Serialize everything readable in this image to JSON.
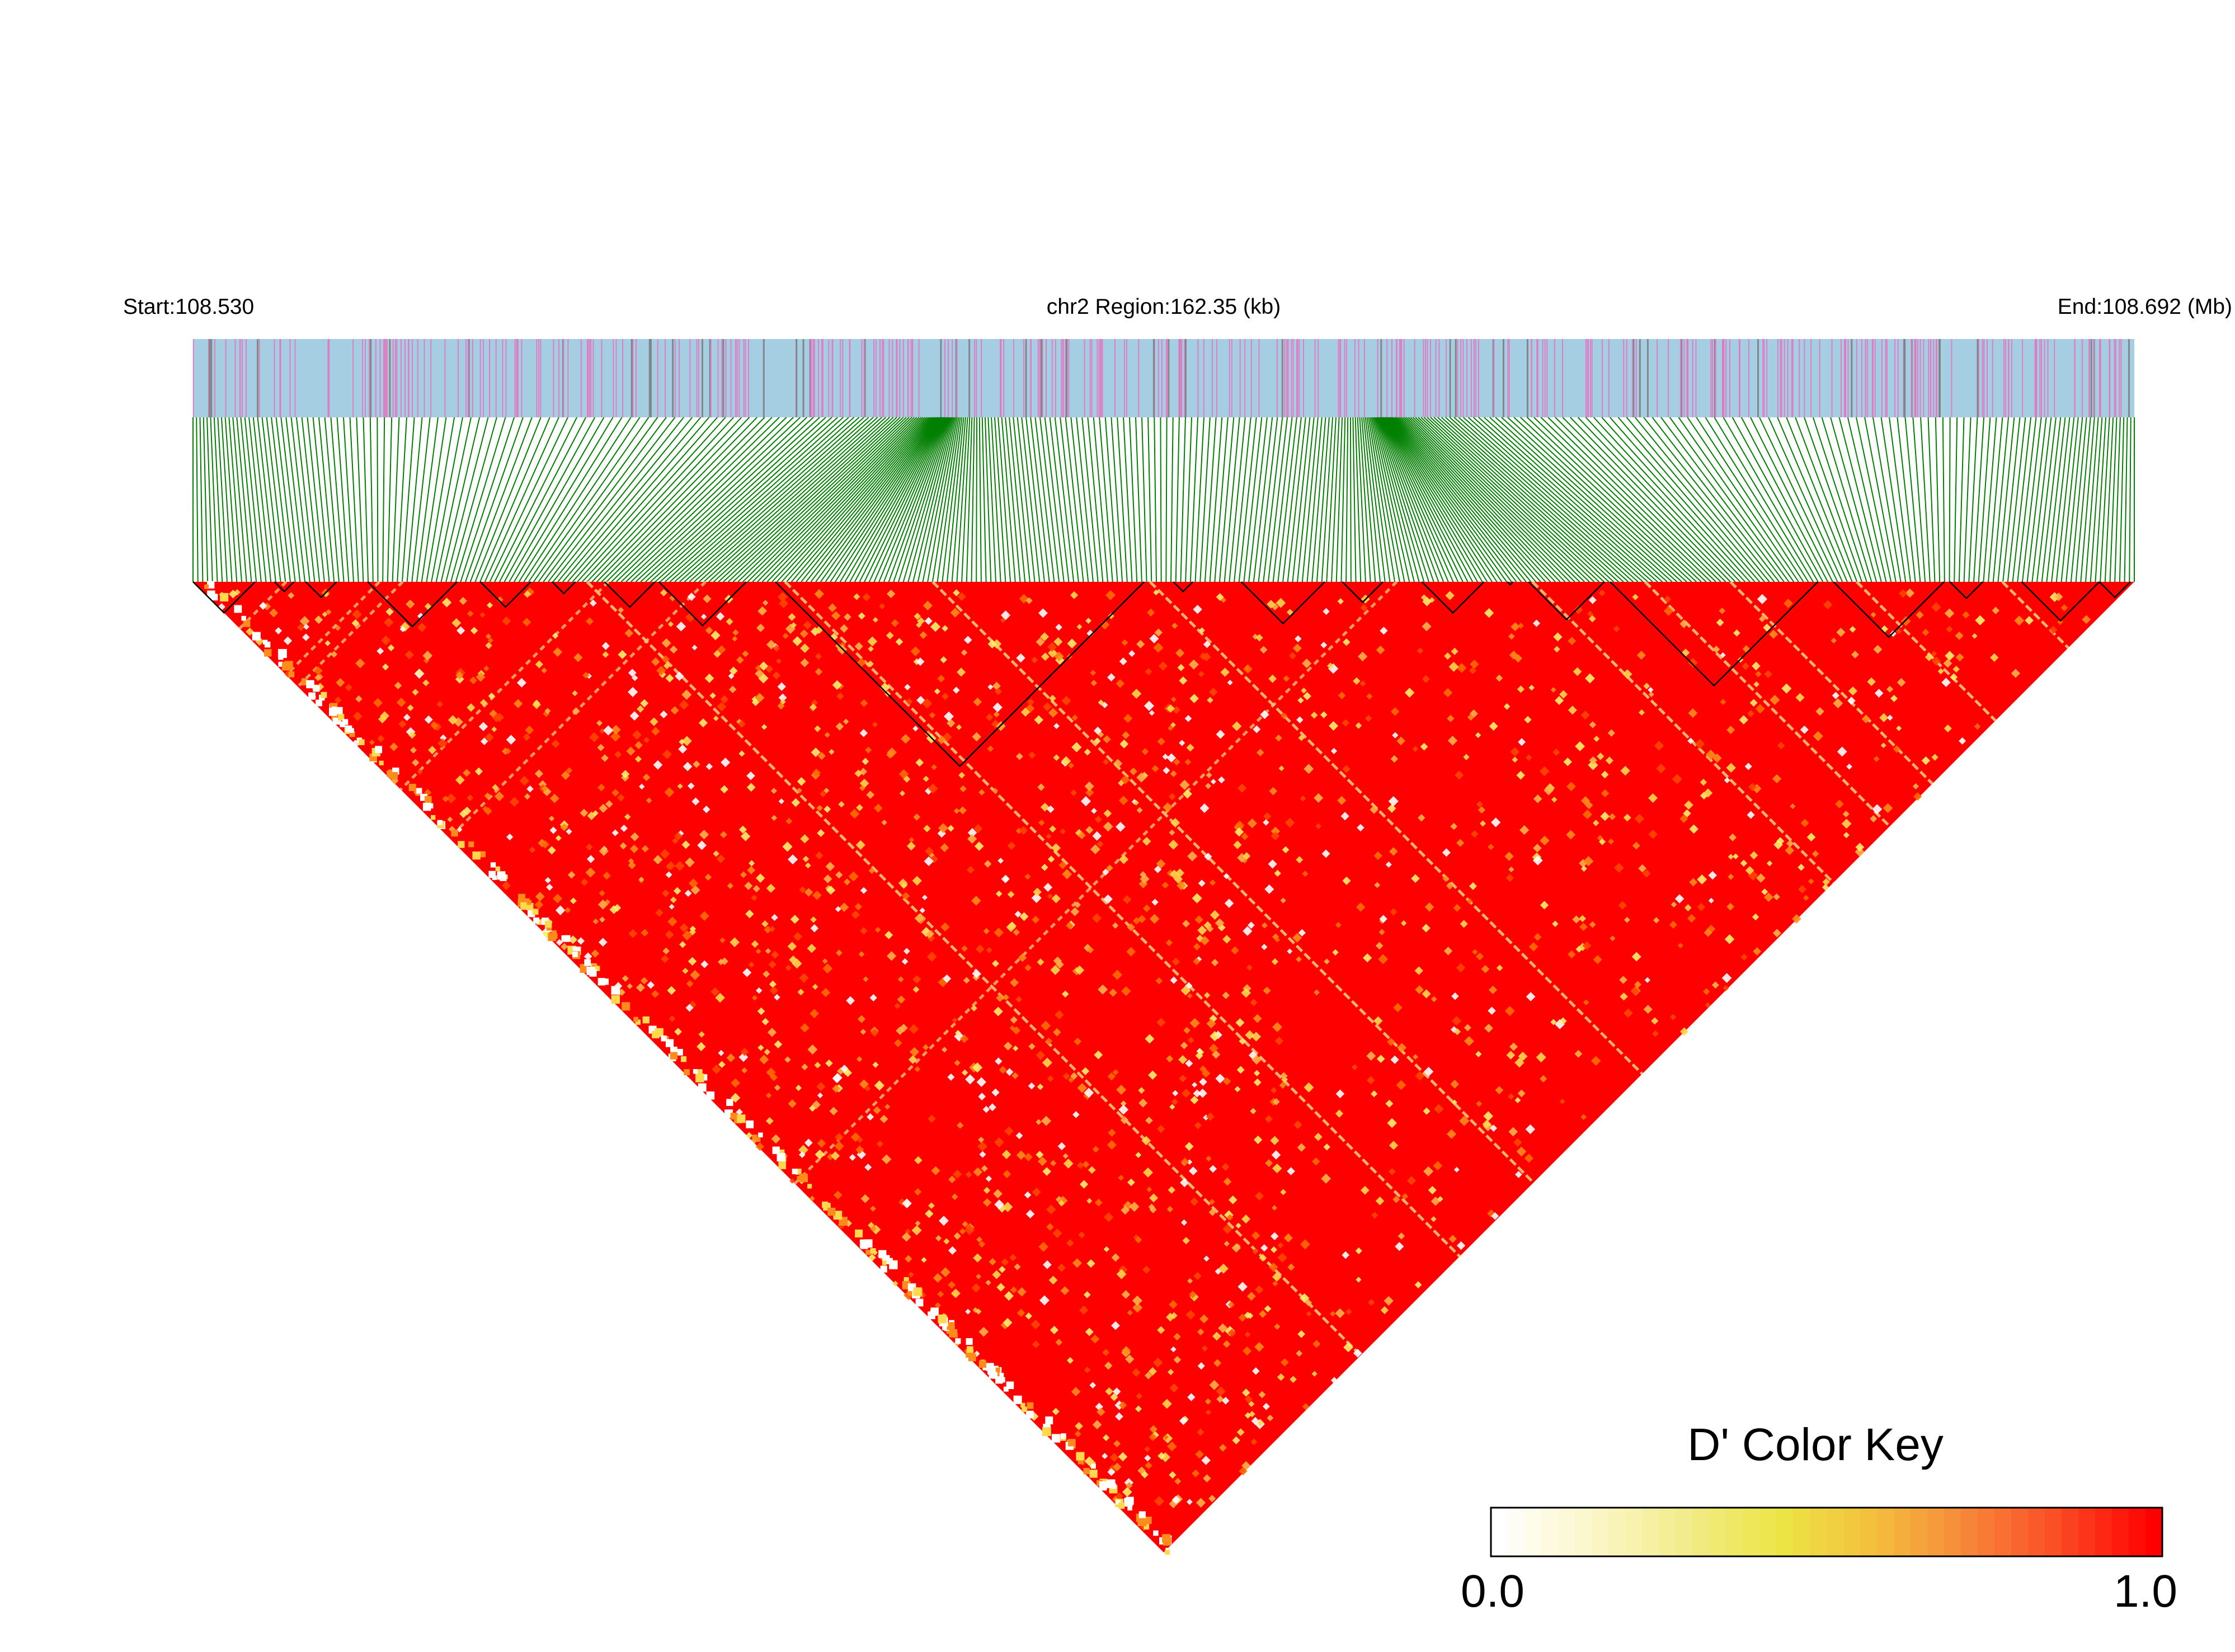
{
  "header": {
    "start_label": "Start:108.530",
    "region_label": "chr2 Region:162.35 (kb)",
    "end_label": "End:108.692 (Mb)"
  },
  "colors": {
    "gene_track_background": "#a6cee3",
    "gene_track_mark": "#e377c2",
    "gene_track_dark_mark": "#7f7f7f",
    "connector_lines": "#007f00",
    "block_outline": "#000000",
    "ld_high": "#ff0000",
    "ld_mid": "#ffa500",
    "ld_low": "#ffff00"
  },
  "color_key": {
    "title": "D' Color Key",
    "min_label": "0.0",
    "max_label": "1.0",
    "stops": [
      "#ffffff",
      "#fbf6c8",
      "#f2ec8a",
      "#ece545",
      "#f3bf3c",
      "#f7873a",
      "#fb4a24",
      "#ff0000"
    ]
  },
  "chart_data": {
    "type": "heatmap",
    "title": "",
    "chromosome": "chr2",
    "region_start_mb": 108.53,
    "region_end_mb": 108.692,
    "region_span_kb": 162.35,
    "snp_count_approx": 400,
    "value_range": [
      0.0,
      1.0
    ],
    "measure": "D'",
    "dominant_value": 1.0,
    "haplotype_blocks_fraction": [
      [
        0.0,
        0.032
      ],
      [
        0.042,
        0.052
      ],
      [
        0.058,
        0.074
      ],
      [
        0.09,
        0.136
      ],
      [
        0.148,
        0.174
      ],
      [
        0.185,
        0.197
      ],
      [
        0.212,
        0.238
      ],
      [
        0.24,
        0.285
      ],
      [
        0.3,
        0.49
      ],
      [
        0.505,
        0.515
      ],
      [
        0.54,
        0.583
      ],
      [
        0.592,
        0.613
      ],
      [
        0.633,
        0.665
      ],
      [
        0.677,
        0.68
      ],
      [
        0.688,
        0.727
      ],
      [
        0.73,
        0.837
      ],
      [
        0.845,
        0.902
      ],
      [
        0.905,
        0.922
      ],
      [
        0.942,
        0.982
      ],
      [
        0.982,
        0.998
      ]
    ],
    "low_ld_diagonals_fraction": [
      0.203,
      0.305,
      0.381,
      0.493,
      0.69,
      0.748,
      0.792,
      0.857,
      0.932
    ],
    "low_ld_antidiagonals_fraction": [
      0.048,
      0.096,
      0.108,
      0.214,
      0.264,
      0.62
    ]
  }
}
